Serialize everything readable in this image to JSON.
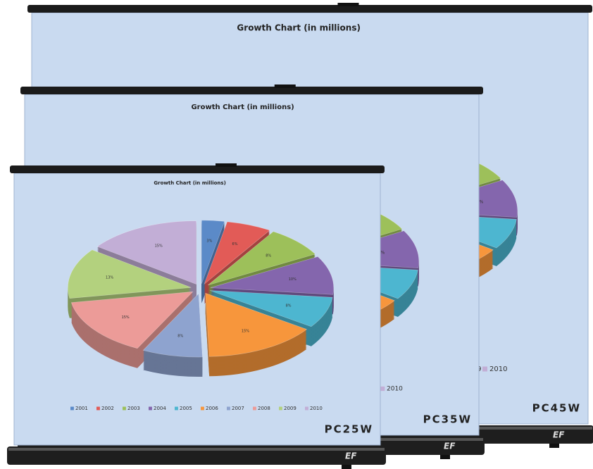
{
  "screens": [
    {
      "model": "PC45W",
      "chart_title": "Growth Chart (in millions)"
    },
    {
      "model": "PC35W",
      "chart_title": "Growth Chart (in millions)"
    },
    {
      "model": "PC25W",
      "chart_title": "Growth Chart (in millions)"
    }
  ],
  "chart": {
    "type": "pie",
    "slices": [
      {
        "name": "2001",
        "value": 3,
        "label": "3%",
        "color": "#5b8ac8"
      },
      {
        "name": "2002",
        "value": 6,
        "label": "6%",
        "color": "#e25b57"
      },
      {
        "name": "2003",
        "value": 8,
        "label": "8%",
        "color": "#9dc05a"
      },
      {
        "name": "2004",
        "value": 10,
        "label": "10%",
        "color": "#8466ad"
      },
      {
        "name": "2005",
        "value": 8,
        "label": "8%",
        "color": "#4db6d0"
      },
      {
        "name": "2006",
        "value": 15,
        "label": "15%",
        "color": "#f7963c"
      },
      {
        "name": "2007",
        "value": 8,
        "label": "8%",
        "color": "#8ea3cf"
      },
      {
        "name": "2008",
        "value": 15,
        "label": "15%",
        "color": "#ec9b98"
      },
      {
        "name": "2009",
        "value": 13,
        "label": "13%",
        "color": "#b3d17e"
      },
      {
        "name": "2010",
        "value": 15,
        "label": "15%",
        "color": "#c2aed6"
      }
    ]
  }
}
